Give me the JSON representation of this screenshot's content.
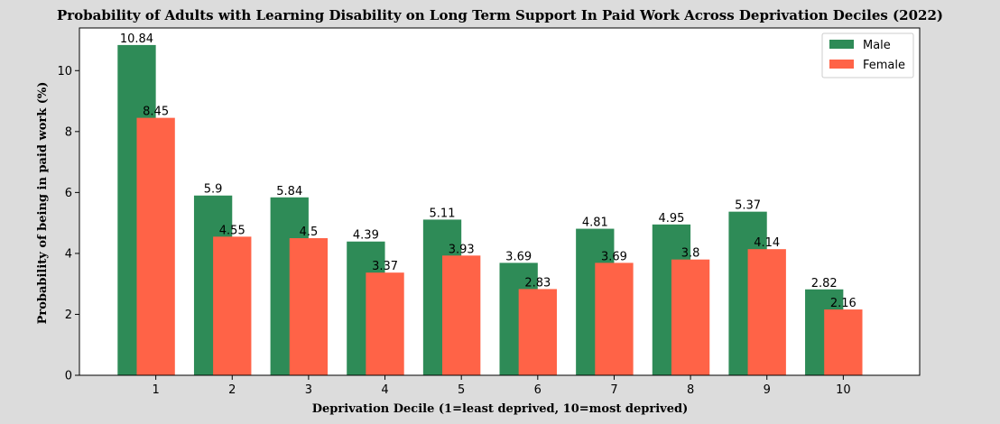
{
  "chart_data": {
    "type": "bar",
    "title": "Probability of Adults with Learning Disability on Long Term Support In Paid Work Across Deprivation Deciles (2022)",
    "xlabel": "Deprivation Decile (1=least deprived, 10=most deprived)",
    "ylabel": "Probability of being in paid work (%)",
    "categories": [
      "1",
      "2",
      "3",
      "4",
      "5",
      "6",
      "7",
      "8",
      "9",
      "10"
    ],
    "series": [
      {
        "name": "Male",
        "color": "#2e8b57",
        "values": [
          10.84,
          5.9,
          5.84,
          4.39,
          5.11,
          3.69,
          4.81,
          4.95,
          5.37,
          2.82
        ],
        "labels": [
          "10.84",
          "5.9",
          "5.84",
          "4.39",
          "5.11",
          "3.69",
          "4.81",
          "4.95",
          "5.37",
          "2.82"
        ]
      },
      {
        "name": "Female",
        "color": "#ff6347",
        "values": [
          8.45,
          4.55,
          4.5,
          3.37,
          3.93,
          2.83,
          3.69,
          3.8,
          4.14,
          2.16
        ],
        "labels": [
          "8.45",
          "4.55",
          "4.5",
          "3.37",
          "3.93",
          "2.83",
          "3.69",
          "3.8",
          "4.14",
          "2.16"
        ]
      }
    ],
    "yticks": [
      "0",
      "2",
      "4",
      "6",
      "8",
      "10"
    ],
    "ylim": [
      0,
      11.4
    ],
    "xlim": [
      0,
      11
    ],
    "legend_position": "top-right",
    "grid": false
  }
}
